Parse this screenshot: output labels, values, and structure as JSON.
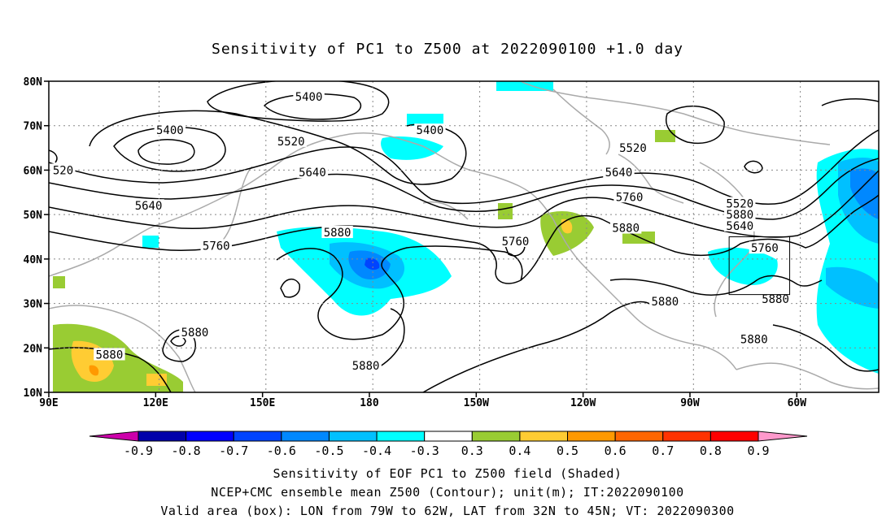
{
  "title": "Sensitivity of PC1 to Z500 at 2022090100 +1.0 day",
  "lat_labels": [
    "80N",
    "70N",
    "60N",
    "50N",
    "40N",
    "30N",
    "20N",
    "10N"
  ],
  "lon_labels": [
    "90E",
    "120E",
    "150E",
    "180",
    "150W",
    "120W",
    "90W",
    "60W"
  ],
  "contour_labels": [
    {
      "text": "5400",
      "lon": 163,
      "lat": 76.5
    },
    {
      "text": "5400",
      "lon": 124,
      "lat": 69
    },
    {
      "text": "5400",
      "lon": 197,
      "lat": 69
    },
    {
      "text": "5520",
      "lon": 158,
      "lat": 66.5
    },
    {
      "text": "5520",
      "lon": 254,
      "lat": 65
    },
    {
      "text": "520",
      "lon": 94,
      "lat": 60
    },
    {
      "text": "5640",
      "lon": 164,
      "lat": 59.5
    },
    {
      "text": "5640",
      "lon": 118,
      "lat": 52
    },
    {
      "text": "5640",
      "lon": 250,
      "lat": 59.5
    },
    {
      "text": "5760",
      "lon": 253,
      "lat": 54
    },
    {
      "text": "5760",
      "lon": 137,
      "lat": 43
    },
    {
      "text": "5760",
      "lon": 221,
      "lat": 44
    },
    {
      "text": "5760",
      "lon": 291,
      "lat": 42.5
    },
    {
      "text": "5880",
      "lon": 171,
      "lat": 46
    },
    {
      "text": "5880",
      "lon": 252,
      "lat": 47
    },
    {
      "text": "5880",
      "lon": 284,
      "lat": 50
    },
    {
      "text": "5640",
      "lon": 284,
      "lat": 47.5
    },
    {
      "text": "5520",
      "lon": 284,
      "lat": 52.5
    },
    {
      "text": "5880",
      "lon": 131,
      "lat": 23.5
    },
    {
      "text": "5880",
      "lon": 107,
      "lat": 18.5
    },
    {
      "text": "5880",
      "lon": 179,
      "lat": 16
    },
    {
      "text": "5880",
      "lon": 263,
      "lat": 30.5
    },
    {
      "text": "5880",
      "lon": 294,
      "lat": 31
    },
    {
      "text": "5880",
      "lon": 288,
      "lat": 22
    }
  ],
  "colorbar": {
    "levels": [
      "-0.9",
      "-0.8",
      "-0.7",
      "-0.6",
      "-0.5",
      "-0.4",
      "-0.3",
      "0.3",
      "0.4",
      "0.5",
      "0.6",
      "0.7",
      "0.8",
      "0.9"
    ],
    "colors": [
      "#cc00aa",
      "#0000aa",
      "#0000ff",
      "#0044ff",
      "#0088ff",
      "#00c0ff",
      "#00ffff",
      "#ffffff",
      "#99cc33",
      "#ffcc33",
      "#ff9900",
      "#ff6600",
      "#ff3300",
      "#ff0000",
      "#ff99cc"
    ]
  },
  "valid_box": {
    "lon_min": 281,
    "lon_max": 298,
    "lat_min": 32,
    "lat_max": 45
  },
  "captions": [
    "Sensitivity of EOF PC1 to Z500 field (Shaded)",
    "NCEP+CMC ensemble mean Z500 (Contour); unit(m); IT:2022090100",
    "Valid area (box): LON from 79W to 62W, LAT from 32N to 45N; VT: 2022090300"
  ]
}
